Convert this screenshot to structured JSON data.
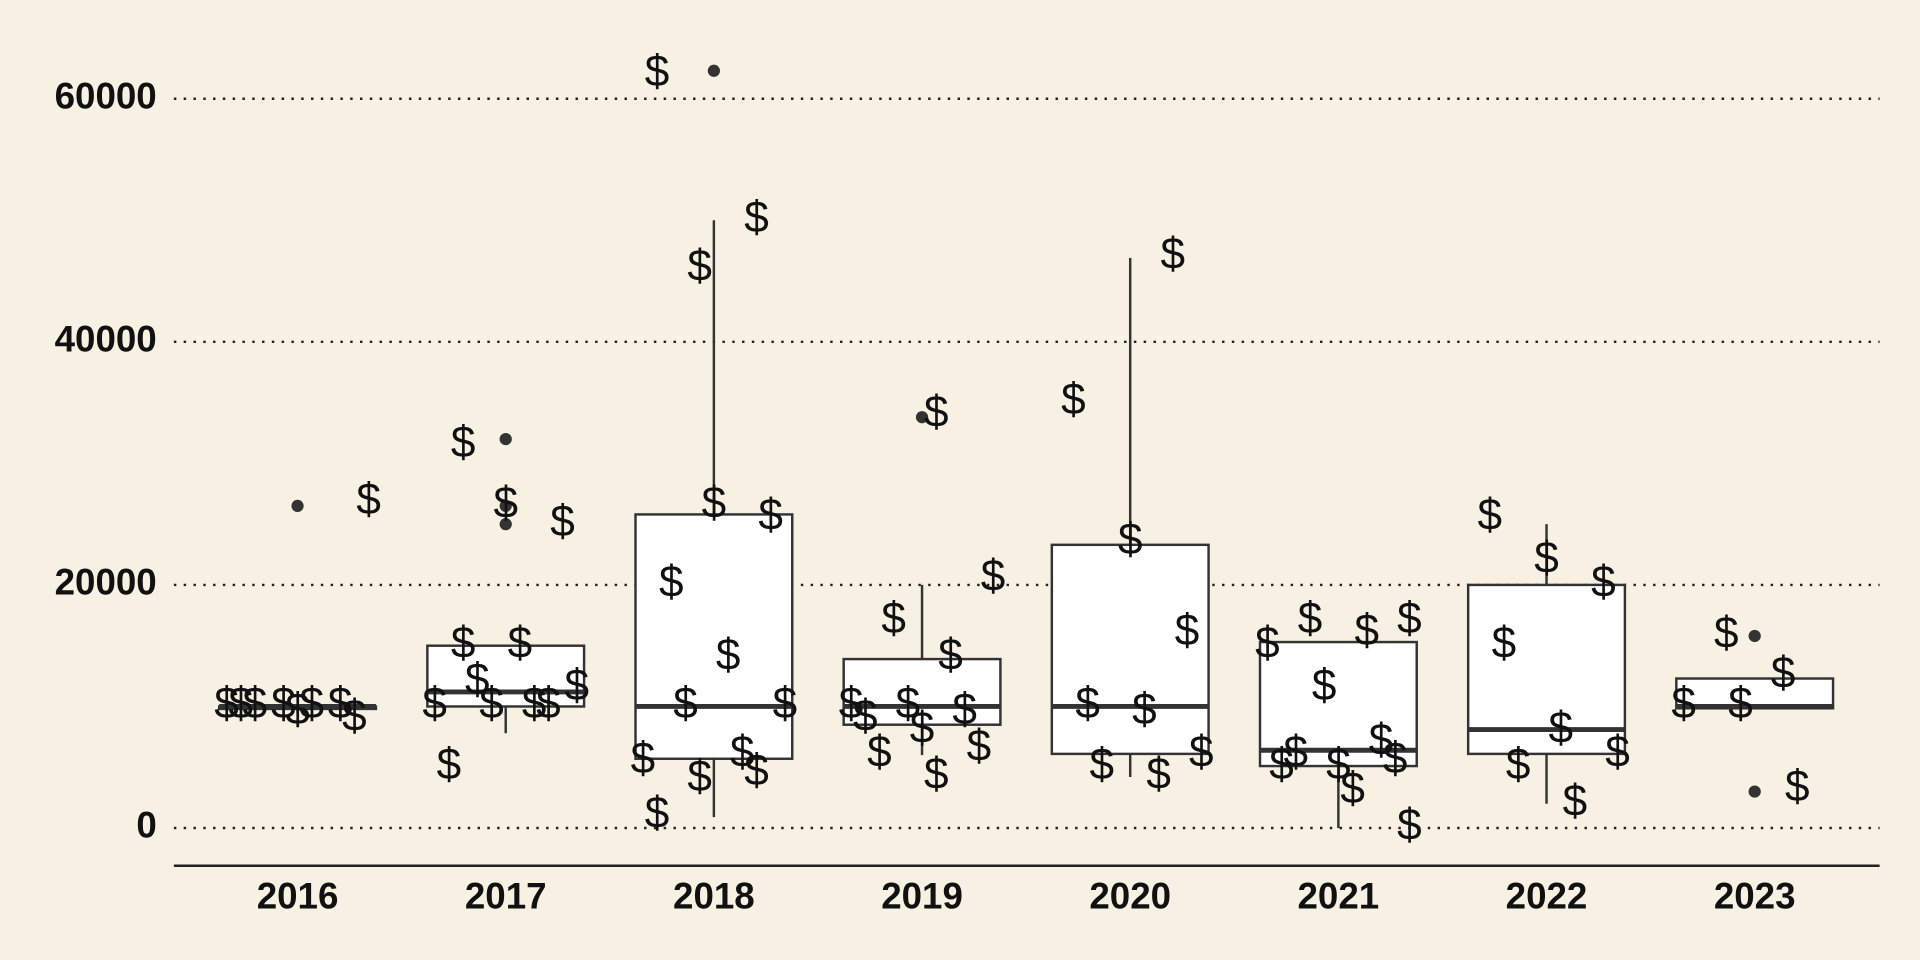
{
  "chart_data": {
    "type": "box",
    "categories": [
      "2016",
      "2017",
      "2018",
      "2019",
      "2020",
      "2021",
      "2022",
      "2023"
    ],
    "whisker_low": [
      9500,
      7800,
      900,
      6000,
      4200,
      0,
      2000,
      9850
    ],
    "q1": [
      9800,
      10000,
      5700,
      8500,
      6100,
      5100,
      6100,
      9850
    ],
    "median": [
      10000,
      11200,
      10000,
      10000,
      10000,
      6400,
      8100,
      10000
    ],
    "q3": [
      10000,
      15000,
      25800,
      13900,
      23300,
      15300,
      20000,
      12300
    ],
    "whisker_high": [
      10000,
      15000,
      50000,
      20000,
      46900,
      15300,
      25000,
      12300
    ],
    "outliers": [
      [
        26500
      ],
      [
        32000,
        26500,
        25000
      ],
      [
        62300
      ],
      [
        33800
      ],
      [],
      [],
      [],
      [
        15800,
        3000
      ]
    ],
    "marker": "$",
    "points": [
      [
        10000,
        10000,
        10000,
        10000,
        9500,
        9000,
        10000,
        10000,
        26800
      ],
      [
        15000,
        15000,
        11500,
        12000,
        10000,
        10000,
        10000,
        10000,
        5000,
        26500,
        25000,
        31500
      ],
      [
        46000,
        50000,
        62000,
        26500,
        25500,
        20000,
        14000,
        10000,
        10000,
        6000,
        5500,
        4000,
        4500,
        1000
      ],
      [
        34000,
        20500,
        17000,
        14000,
        10000,
        10000,
        9500,
        9000,
        8000,
        6500,
        6000,
        4200
      ],
      [
        47000,
        35000,
        23500,
        16000,
        10000,
        9500,
        6000,
        5000,
        4200
      ],
      [
        17000,
        17000,
        16000,
        15000,
        11500,
        7000,
        5000,
        5000,
        5500,
        6000,
        3000,
        0
      ],
      [
        25500,
        22000,
        20000,
        15000,
        8000,
        6000,
        5000,
        2000
      ],
      [
        15800,
        12500,
        10000,
        10000,
        3200
      ]
    ],
    "ylim": [
      -3100,
      65100
    ],
    "yticks": [
      0,
      20000,
      40000,
      60000
    ],
    "grid": true,
    "box_fill": "#ffffff",
    "line_color": "#333333"
  }
}
